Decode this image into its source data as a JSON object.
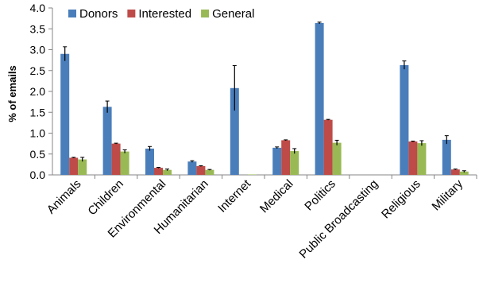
{
  "chart_data": {
    "type": "bar",
    "title": "",
    "xlabel": "",
    "ylabel": "% of emails",
    "ylim": [
      0,
      4.0
    ],
    "yticks": [
      "0.0",
      "0.5",
      "1.0",
      "1.5",
      "2.0",
      "2.5",
      "3.0",
      "3.5",
      "4.0"
    ],
    "grid": false,
    "legend_position": "top-left",
    "categories": [
      "Animals",
      "Children",
      "Environmental",
      "Humanitarian",
      "Internet",
      "Medical",
      "Politics",
      "Public Broadcasting",
      "Religious",
      "Military"
    ],
    "series": [
      {
        "name": "Donors",
        "color": "#4a7ebb",
        "values": [
          2.9,
          1.63,
          0.63,
          0.32,
          2.08,
          0.65,
          3.64,
          0.0,
          2.63,
          0.84
        ],
        "errors": [
          0.17,
          0.14,
          0.05,
          0.02,
          0.54,
          0.02,
          0.02,
          0.0,
          0.1,
          0.1
        ]
      },
      {
        "name": "Interested",
        "color": "#be4b48",
        "values": [
          0.41,
          0.75,
          0.17,
          0.21,
          0.0,
          0.83,
          1.32,
          0.0,
          0.8,
          0.13
        ],
        "errors": [
          0.01,
          0.01,
          0.01,
          0.01,
          0.0,
          0.01,
          0.01,
          0.0,
          0.01,
          0.01
        ]
      },
      {
        "name": "General",
        "color": "#98b954",
        "values": [
          0.37,
          0.56,
          0.12,
          0.12,
          0.01,
          0.57,
          0.77,
          0.0,
          0.76,
          0.08
        ],
        "errors": [
          0.05,
          0.04,
          0.02,
          0.01,
          0.0,
          0.06,
          0.06,
          0.0,
          0.06,
          0.02
        ]
      }
    ]
  }
}
